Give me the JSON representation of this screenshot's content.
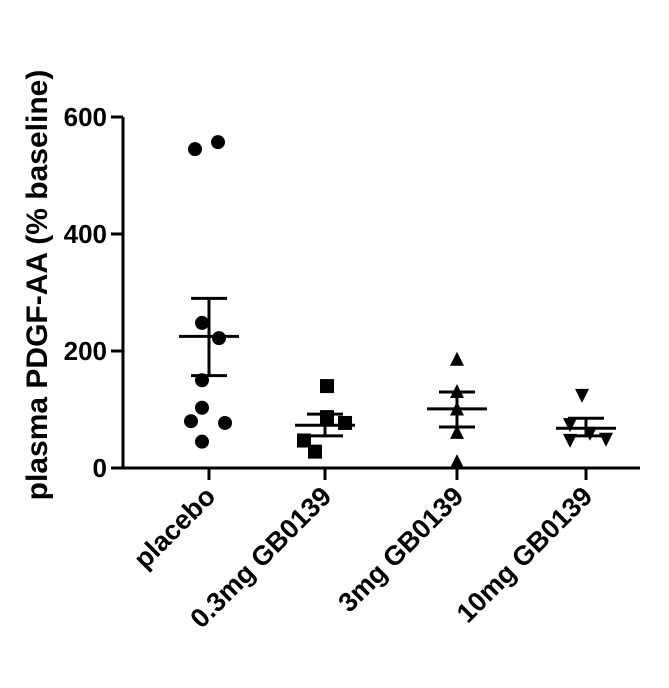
{
  "chart_data": {
    "type": "scatter",
    "ylabel": "plasma PDGF-AA (% baseline)",
    "xlabel": "",
    "ylim": [
      0,
      600
    ],
    "yticks": [
      0,
      200,
      400,
      600
    ],
    "grid": false,
    "marker_color": "#000000",
    "groups": [
      {
        "label": "placebo",
        "marker": "circle",
        "values": [
          545,
          557,
          248,
          222,
          150,
          103,
          80,
          77,
          45
        ],
        "mean": 225,
        "sem_upper": 290,
        "sem_lower": 158
      },
      {
        "label": "0.3mg GB0139",
        "marker": "square",
        "values": [
          140,
          87,
          77,
          47,
          28
        ],
        "mean": 73,
        "sem_upper": 92,
        "sem_lower": 55
      },
      {
        "label": "3mg GB0139",
        "marker": "triangle-up",
        "values": [
          185,
          130,
          100,
          60,
          10
        ],
        "mean": 101,
        "sem_upper": 130,
        "sem_lower": 70
      },
      {
        "label": "10mg GB0139",
        "marker": "triangle-down",
        "values": [
          125,
          75,
          60,
          50,
          48
        ],
        "mean": 68,
        "sem_upper": 85,
        "sem_lower": 55
      }
    ]
  }
}
